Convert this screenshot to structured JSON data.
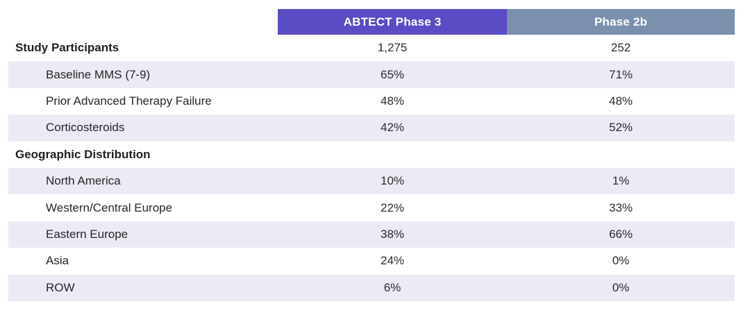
{
  "table": {
    "columns": [
      {
        "label": "ABTECT Phase 3",
        "bg_color": "#5a4cc5"
      },
      {
        "label": "Phase 2b",
        "bg_color": "#7a90ac"
      }
    ],
    "rows": [
      {
        "label": "Study Participants",
        "type": "section",
        "phase3": "1,275",
        "phase2b": "252"
      },
      {
        "label": "Baseline MMS (7-9)",
        "type": "sub",
        "phase3": "65%",
        "phase2b": "71%"
      },
      {
        "label": "Prior Advanced Therapy Failure",
        "type": "sub",
        "phase3": "48%",
        "phase2b": "48%"
      },
      {
        "label": "Corticosteroids",
        "type": "sub",
        "phase3": "42%",
        "phase2b": "52%"
      },
      {
        "label": "Geographic Distribution",
        "type": "section",
        "phase3": "",
        "phase2b": ""
      },
      {
        "label": "North America",
        "type": "sub",
        "phase3": "10%",
        "phase2b": "1%"
      },
      {
        "label": "Western/Central Europe",
        "type": "sub",
        "phase3": "22%",
        "phase2b": "33%"
      },
      {
        "label": "Eastern Europe",
        "type": "sub",
        "phase3": "38%",
        "phase2b": "66%"
      },
      {
        "label": "Asia",
        "type": "sub",
        "phase3": "24%",
        "phase2b": "0%"
      },
      {
        "label": "ROW",
        "type": "sub",
        "phase3": "6%",
        "phase2b": "0%"
      }
    ],
    "colors": {
      "header_phase3_bg": "#5a4cc5",
      "header_phase2b_bg": "#7a90ac",
      "shaded_row_bg": "#ebeaf5",
      "text": "#262626",
      "header_text": "#ffffff"
    }
  },
  "chart_data": {
    "type": "table",
    "columns": [
      "",
      "ABTECT Phase 3",
      "Phase 2b"
    ],
    "rows": [
      [
        "Study Participants",
        "1,275",
        "252"
      ],
      [
        "Baseline MMS (7-9)",
        "65%",
        "71%"
      ],
      [
        "Prior Advanced Therapy Failure",
        "48%",
        "48%"
      ],
      [
        "Corticosteroids",
        "42%",
        "52%"
      ],
      [
        "Geographic Distribution",
        "",
        ""
      ],
      [
        "North America",
        "10%",
        "1%"
      ],
      [
        "Western/Central Europe",
        "22%",
        "33%"
      ],
      [
        "Eastern Europe",
        "38%",
        "66%"
      ],
      [
        "Asia",
        "24%",
        "0%"
      ],
      [
        "ROW",
        "6%",
        "0%"
      ]
    ],
    "legend_position": "none",
    "grid": false
  }
}
